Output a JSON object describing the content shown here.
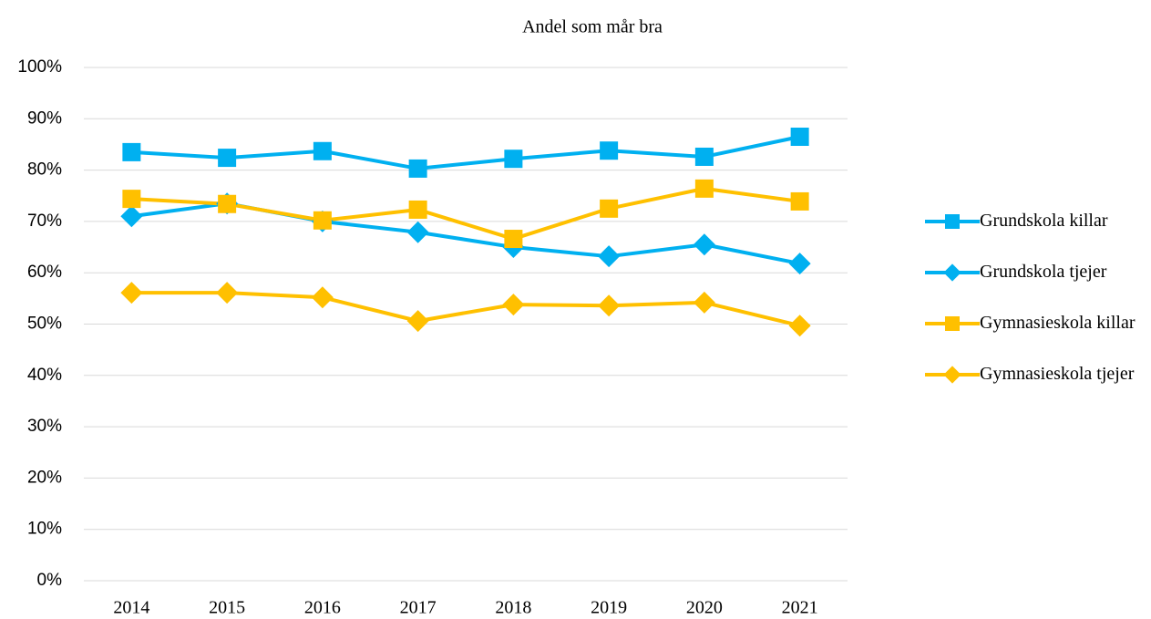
{
  "chart_data": {
    "type": "line",
    "title": "Andel som mår bra",
    "categories": [
      "2014",
      "2015",
      "2016",
      "2017",
      "2018",
      "2019",
      "2020",
      "2021"
    ],
    "series": [
      {
        "name": "Grundskola killar",
        "color": "#00b0f0",
        "marker": "square",
        "values": [
          83.5,
          82.4,
          83.7,
          80.3,
          82.2,
          83.8,
          82.6,
          86.5
        ]
      },
      {
        "name": "Grundskola tjejer",
        "color": "#00b0f0",
        "marker": "diamond",
        "values": [
          71.0,
          73.5,
          70.0,
          67.9,
          65.0,
          63.2,
          65.5,
          61.8
        ]
      },
      {
        "name": "Gymnasieskola killar",
        "color": "#ffc000",
        "marker": "square",
        "values": [
          74.4,
          73.4,
          70.2,
          72.3,
          66.6,
          72.5,
          76.4,
          73.9
        ]
      },
      {
        "name": "Gymnasieskola tjejer",
        "color": "#ffc000",
        "marker": "diamond",
        "values": [
          56.1,
          56.1,
          55.2,
          50.6,
          53.8,
          53.6,
          54.2,
          49.7
        ]
      }
    ],
    "ylim": [
      0,
      100
    ],
    "yticks": [
      {
        "value": 0,
        "label": "0%"
      },
      {
        "value": 10,
        "label": "10%"
      },
      {
        "value": 20,
        "label": "20%"
      },
      {
        "value": 30,
        "label": "30%"
      },
      {
        "value": 40,
        "label": "40%"
      },
      {
        "value": 50,
        "label": "50%"
      },
      {
        "value": 60,
        "label": "60%"
      },
      {
        "value": 70,
        "label": "70%"
      },
      {
        "value": 80,
        "label": "80%"
      },
      {
        "value": 90,
        "label": "90%"
      },
      {
        "value": 100,
        "label": "100%"
      }
    ],
    "grid": true,
    "legend": "right"
  }
}
